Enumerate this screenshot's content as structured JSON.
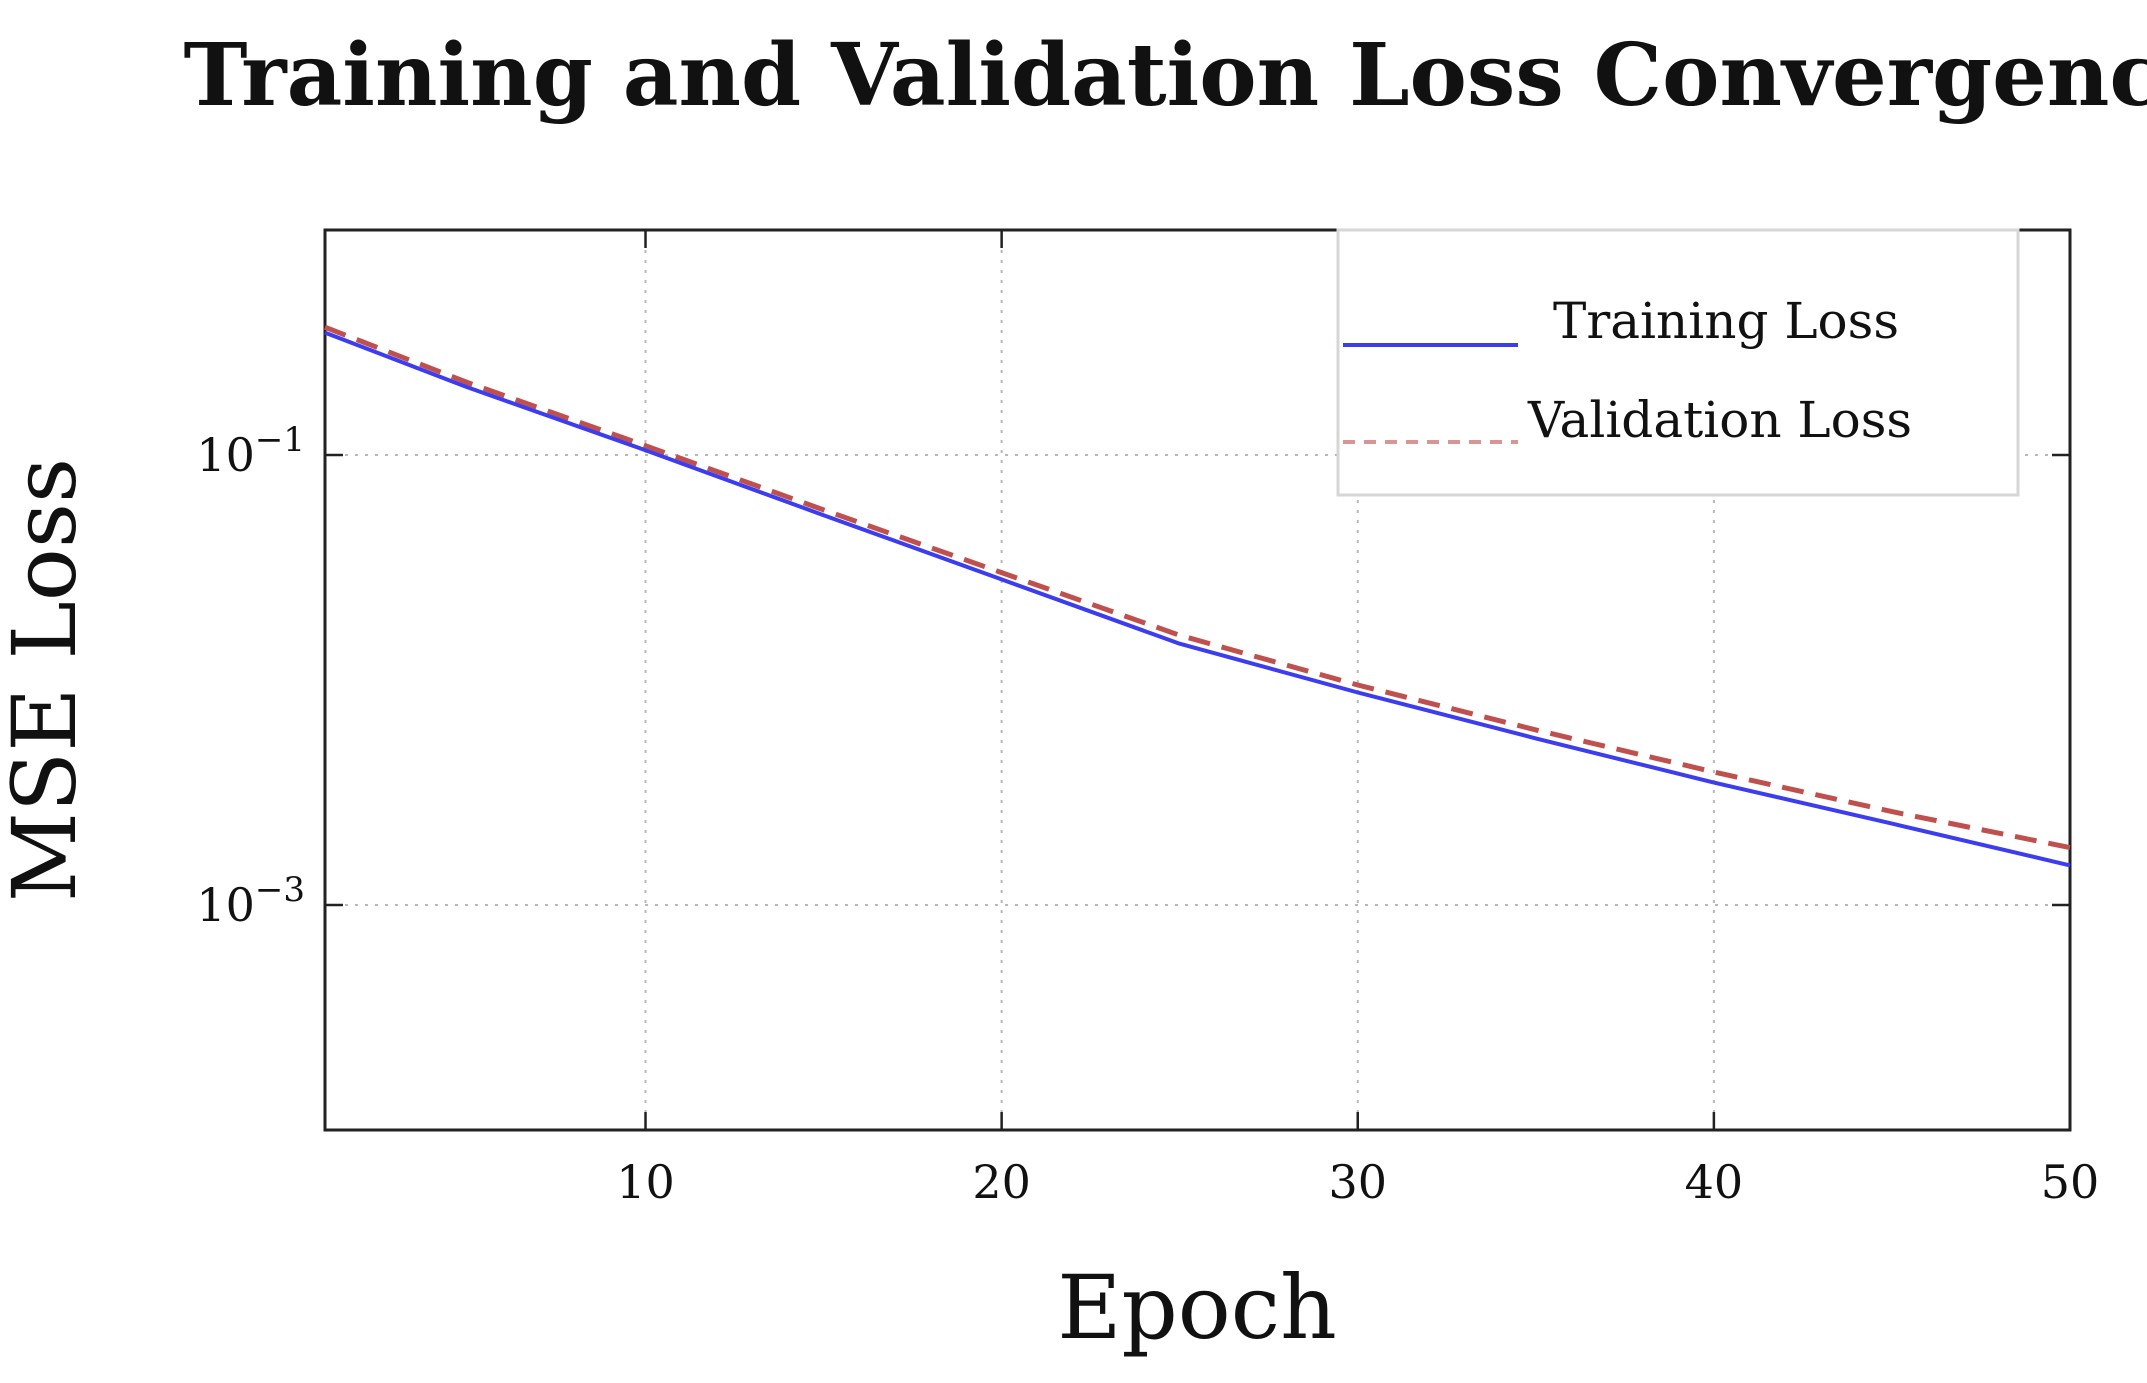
{
  "chart_data": {
    "type": "line",
    "title": "Training and Validation Loss Convergence",
    "xlabel": "Epoch",
    "ylabel": "MSE Loss",
    "xlim": [
      1,
      50
    ],
    "ylim": [
      0.0001,
      1
    ],
    "yscale": "log",
    "grid": true,
    "legend_position": "top-right",
    "x_ticks": [
      10,
      20,
      30,
      40,
      50
    ],
    "x_tick_labels": [
      "10",
      "20",
      "30",
      "40",
      "50"
    ],
    "y_ticks": [
      0.1,
      0.001
    ],
    "y_tick_labels": [
      {
        "base": "10",
        "exp": "−1"
      },
      {
        "base": "10",
        "exp": "−3"
      }
    ],
    "x": [
      1,
      5,
      10,
      15,
      20,
      25,
      30,
      35,
      40,
      45,
      50
    ],
    "series": [
      {
        "name": "Training Loss",
        "color": "#3c3cf0",
        "style": "solid",
        "values": [
          0.35,
          0.2,
          0.105,
          0.054,
          0.028,
          0.0145,
          0.0088,
          0.0055,
          0.0035,
          0.0023,
          0.0015
        ]
      },
      {
        "name": "Validation Loss",
        "color": "#c0504d",
        "style": "dashed",
        "values": [
          0.37,
          0.21,
          0.11,
          0.057,
          0.03,
          0.0158,
          0.0095,
          0.006,
          0.0039,
          0.0026,
          0.0018
        ]
      }
    ]
  }
}
